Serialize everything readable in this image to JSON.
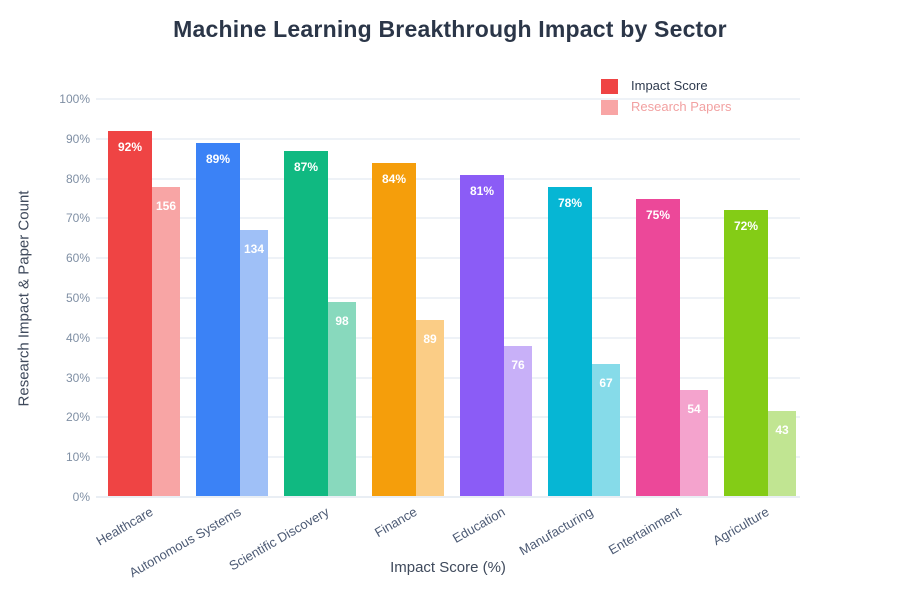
{
  "chart_data": {
    "type": "bar",
    "title": "Machine Learning Breakthrough Impact by Sector",
    "xlabel": "Impact Score (%)",
    "ylabel": "Research Impact & Paper Count",
    "categories": [
      "Healthcare",
      "Autonomous Systems",
      "Scientific Discovery",
      "Finance",
      "Education",
      "Manufacturing",
      "Entertainment",
      "Agriculture"
    ],
    "series": [
      {
        "name": "Impact Score",
        "values": [
          92,
          89,
          87,
          84,
          81,
          78,
          75,
          72
        ],
        "value_labels": [
          "92%",
          "89%",
          "87%",
          "84%",
          "81%",
          "78%",
          "75%",
          "72%"
        ],
        "axis_pct": [
          92,
          89,
          87,
          84,
          81,
          78,
          75,
          72
        ],
        "bar_colors": [
          "#ef4444",
          "#3b82f6",
          "#10b981",
          "#f59e0b",
          "#8b5cf6",
          "#06b6d4",
          "#ec4899",
          "#84cc16"
        ],
        "legend_swatch_color": "#ef4444",
        "legend_text_color": "#2e3a4e"
      },
      {
        "name": "Research Papers",
        "values": [
          156,
          134,
          98,
          89,
          76,
          67,
          54,
          43
        ],
        "value_labels": [
          "156",
          "134",
          "98",
          "89",
          "76",
          "67",
          "54",
          "43"
        ],
        "axis_pct": [
          78,
          67,
          49,
          44.5,
          38,
          33.5,
          27,
          21.5
        ],
        "bar_colors": [
          "#f8a5a5",
          "#9fc0f7",
          "#88d9bd",
          "#fbcd86",
          "#c8b0f8",
          "#86dbe9",
          "#f4a3cd",
          "#c1e592"
        ],
        "legend_swatch_color": "#f8a5a5",
        "legend_text_color": "#f2a1a1"
      }
    ],
    "ylim": [
      0,
      100
    ],
    "yticks": [
      "0%",
      "10%",
      "20%",
      "30%",
      "40%",
      "50%",
      "60%",
      "70%",
      "80%",
      "90%",
      "100%"
    ],
    "grid": true,
    "legend_position": "top-right"
  },
  "colors": {
    "background": "#ffffff",
    "grid": "#eef2f7",
    "axis_line": "#e9eef4",
    "tick_text": "#7f8fa4",
    "x_label_text": "#4c5a74",
    "title_text": "#2b3648",
    "axis_title_text": "#3f4a5c",
    "bar_label_text": "#ffffff"
  }
}
